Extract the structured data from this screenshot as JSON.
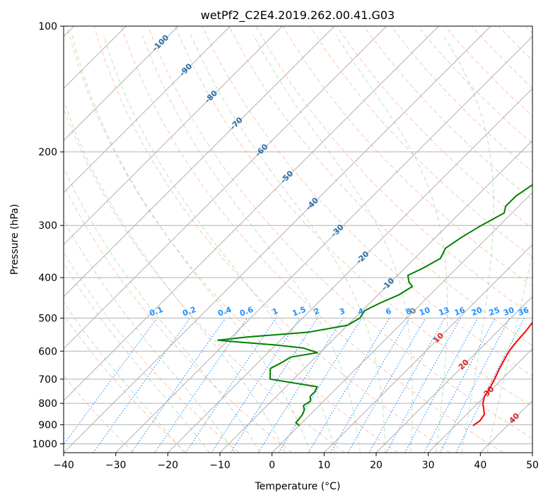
{
  "chart_data": {
    "type": "line",
    "title": "wetPf2_C2E4.2019.262.00.41.G03",
    "xlabel": "Temperature (°C)",
    "ylabel": "Pressure (hPa)",
    "xlim": [
      -40,
      50
    ],
    "ylim": [
      1050,
      100
    ],
    "y_scale": "log",
    "x_ticks": [
      "−40",
      "−30",
      "−20",
      "−10",
      "0",
      "10",
      "20",
      "30",
      "40",
      "50"
    ],
    "y_ticks": [
      "100",
      "200",
      "300",
      "400",
      "500",
      "600",
      "700",
      "800",
      "900",
      "1000"
    ],
    "grid": true,
    "series": [
      {
        "color": "#ff0000",
        "pressure": [
          905,
          880,
          850,
          820,
          800,
          770,
          740,
          700,
          660,
          620,
          600,
          570,
          540,
          500,
          460,
          420,
          400,
          370,
          340,
          300,
          270,
          250,
          230,
          200,
          180,
          160,
          150,
          140,
          130,
          120,
          110,
          105,
          100
        ],
        "temperature": [
          33.4,
          33.8,
          33.4,
          32.0,
          31.0,
          30.0,
          29.5,
          28.6,
          27.5,
          26.5,
          26.0,
          25.6,
          25.4,
          24.8,
          23.8,
          22.6,
          21.9,
          20.6,
          19.3,
          17.2,
          15.8,
          14.8,
          14.0,
          11.8,
          9.8,
          6.9,
          5.5,
          4.4,
          3.8,
          3.2,
          3.0,
          3.2,
          3.3
        ]
      },
      {
        "color": "#008000",
        "pressure": [
          905,
          890,
          870,
          850,
          830,
          810,
          790,
          770,
          750,
          730,
          700,
          680,
          660,
          640,
          620,
          605,
          590,
          580,
          570,
          565,
          555,
          540,
          520,
          500,
          480,
          460,
          440,
          420,
          410,
          395,
          380,
          360,
          340,
          320,
          300,
          290,
          280,
          270,
          255,
          240,
          225,
          210,
          200,
          190,
          180,
          170,
          160,
          150,
          140,
          130,
          120,
          110,
          105,
          100
        ],
        "temperature": [
          0.1,
          -1.2,
          -1.3,
          -1.5,
          -2.0,
          -3.0,
          -2.5,
          -3.5,
          -3.5,
          -4.0,
          -14.5,
          -15.5,
          -16.5,
          -15.5,
          -14.8,
          -10.5,
          -14.0,
          -20.0,
          -28.0,
          -32.0,
          -27.0,
          -16.0,
          -10.0,
          -9.0,
          -9.5,
          -8.0,
          -6.0,
          -5.0,
          -6.5,
          -8.0,
          -6.5,
          -5.0,
          -6.0,
          -5.0,
          -3.5,
          -2.5,
          -1.5,
          -2.5,
          -2.5,
          -1.5,
          -1.5,
          -1.5,
          -1.0,
          -1.0,
          0.0,
          1.0,
          2.0,
          3.0,
          3.8,
          3.8,
          3.0,
          1.5,
          0.5,
          0.1
        ]
      }
    ],
    "dry_adiabat_labels": [
      "-100",
      "-90",
      "-80",
      "-70",
      "-60",
      "-50",
      "-40",
      "-30",
      "-20",
      "-10",
      "0",
      "10",
      "20",
      "30",
      "40"
    ],
    "mixing_ratio_labels": [
      "0.1",
      "0.2",
      "0.4",
      "0.6",
      "1",
      "1.5",
      "2",
      "3",
      "4",
      "6",
      "8",
      "10",
      "13",
      "16",
      "20",
      "25",
      "30",
      "36"
    ]
  }
}
